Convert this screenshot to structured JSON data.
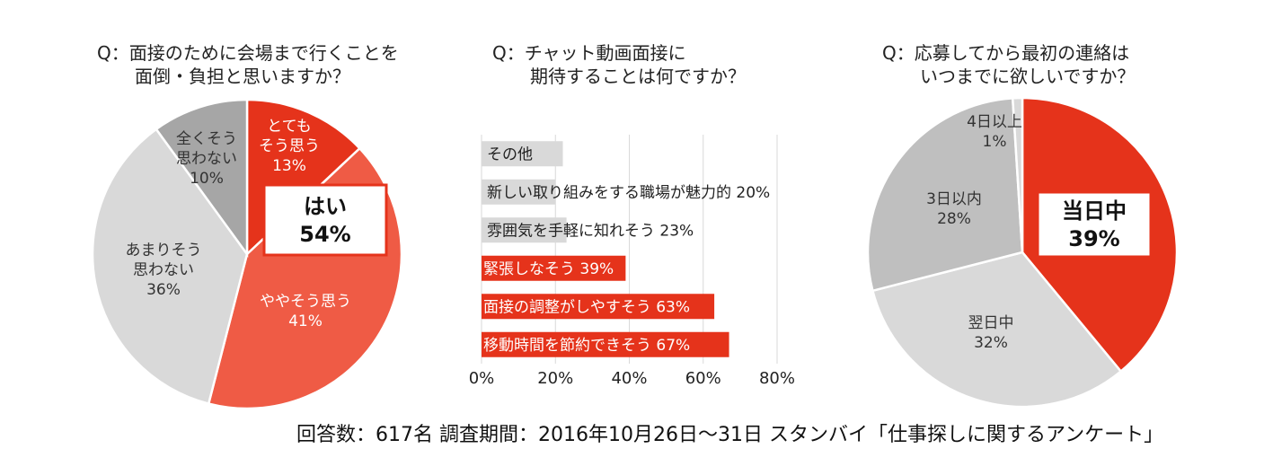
{
  "footer": "回答数：617名 調査期間：2016年10月26日〜31日 スタンバイ「仕事探しに関するアンケート」",
  "colors": {
    "red": "#e5331b",
    "salmon": "#ef5b45",
    "lightgray": "#d9d9d9",
    "midgray": "#bfbfbf",
    "gray": "#a6a6a6",
    "barGray": "#d9d9d9",
    "grid": "#d9d9d9"
  },
  "chart_data": [
    {
      "type": "pie",
      "title_lines": [
        "Q：面接のために会場まで行くことを",
        "面倒・負担と思いますか？"
      ],
      "slices": [
        {
          "label_lines": [
            "とても",
            "そう思う"
          ],
          "value": 13,
          "value_text": "13%",
          "color": "red",
          "text_color": "#ffffff"
        },
        {
          "label_lines": [
            "ややそう思う"
          ],
          "value": 41,
          "value_text": "41%",
          "color": "salmon",
          "text_color": "#ffffff"
        },
        {
          "label_lines": [
            "あまりそう",
            "思わない"
          ],
          "value": 36,
          "value_text": "36%",
          "color": "lightgray",
          "text_color": "#333333"
        },
        {
          "label_lines": [
            "全くそう",
            "思わない"
          ],
          "value": 10,
          "value_text": "10%",
          "color": "gray",
          "text_color": "#333333"
        }
      ],
      "callout": {
        "label": "はい",
        "value_text": "54%"
      }
    },
    {
      "type": "bar",
      "orientation": "horizontal",
      "title_lines": [
        "Q：チャット動画面接に",
        "期待することは何ですか？"
      ],
      "categories": [
        "その他",
        "新しい取り組みをする職場が魅力的",
        "雰囲気を手軽に知れそう",
        "緊張しなそう",
        "面接の調整がしやすそう",
        "移動時間を節約できそう"
      ],
      "values": [
        22,
        20,
        23,
        39,
        63,
        67
      ],
      "bar_labels": [
        "その他",
        "新しい取り組みをする職場が魅力的 20%",
        "雰囲気を手軽に知れそう 23%",
        "緊張しなそう 39%",
        "面接の調整がしやすそう 63%",
        "移動時間を節約できそう 67%"
      ],
      "highlight": [
        false,
        false,
        false,
        true,
        true,
        true
      ],
      "xlim": [
        0,
        80
      ],
      "xticks": [
        "0%",
        "20%",
        "40%",
        "60%",
        "80%"
      ]
    },
    {
      "type": "pie",
      "title_lines": [
        "Q：応募してから最初の連絡は",
        "いつまでに欲しいですか？"
      ],
      "slices": [
        {
          "label_lines": [],
          "value": 39,
          "value_text": "39%",
          "color": "red",
          "text_color": "#ffffff"
        },
        {
          "label_lines": [
            "翌日中"
          ],
          "value": 32,
          "value_text": "32%",
          "color": "lightgray",
          "text_color": "#333333"
        },
        {
          "label_lines": [
            "3日以内"
          ],
          "value": 28,
          "value_text": "28%",
          "color": "midgray",
          "text_color": "#333333"
        },
        {
          "label_lines": [
            "4日以上"
          ],
          "value": 1,
          "value_text": "1%",
          "color": "lightgray",
          "text_color": "#333333"
        }
      ],
      "callout": {
        "label": "当日中",
        "value_text": "39%"
      }
    }
  ]
}
